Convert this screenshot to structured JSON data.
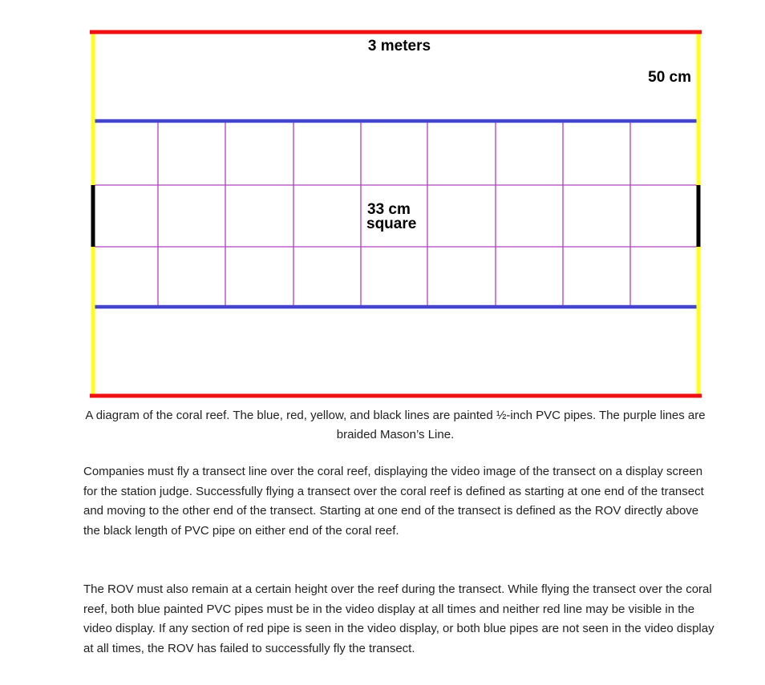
{
  "diagram": {
    "labels": {
      "width": "3 meters",
      "band": "50 cm",
      "square_line1": "33 cm",
      "square_line2": "square"
    },
    "colors": {
      "red_pipe": "#ee1111",
      "yellow_pipe": "#ffff22",
      "blue_pipe": "#4444cc",
      "black_pipe": "#000000",
      "mason_line": "#b040c0"
    }
  },
  "caption": {
    "text": "A diagram of the coral reef.  The blue, red, yellow, and black lines are painted ½-inch PVC pipes.  The purple lines are braided Mason’s Line."
  },
  "body": {
    "paragraph1": "Companies must fly a transect line over the coral reef, displaying the video image of the transect on a display screen for the station judge.  Successfully flying a transect over the coral reef is defined as starting at one end of the transect and moving to the other end of the transect.  Starting at one end of the transect is defined as the ROV directly above the black length of PVC pipe on either end of the coral reef.",
    "paragraph2": "The ROV must also remain at a certain height over the reef during the transect.  While flying the transect over the coral reef, both blue painted PVC pipes must be in the video display at all times and neither red line may be visible in the video display.  If any section of red pipe is seen in the video display, or both blue pipes are not seen in the video display at all times, the ROV has failed to successfully fly the transect."
  }
}
